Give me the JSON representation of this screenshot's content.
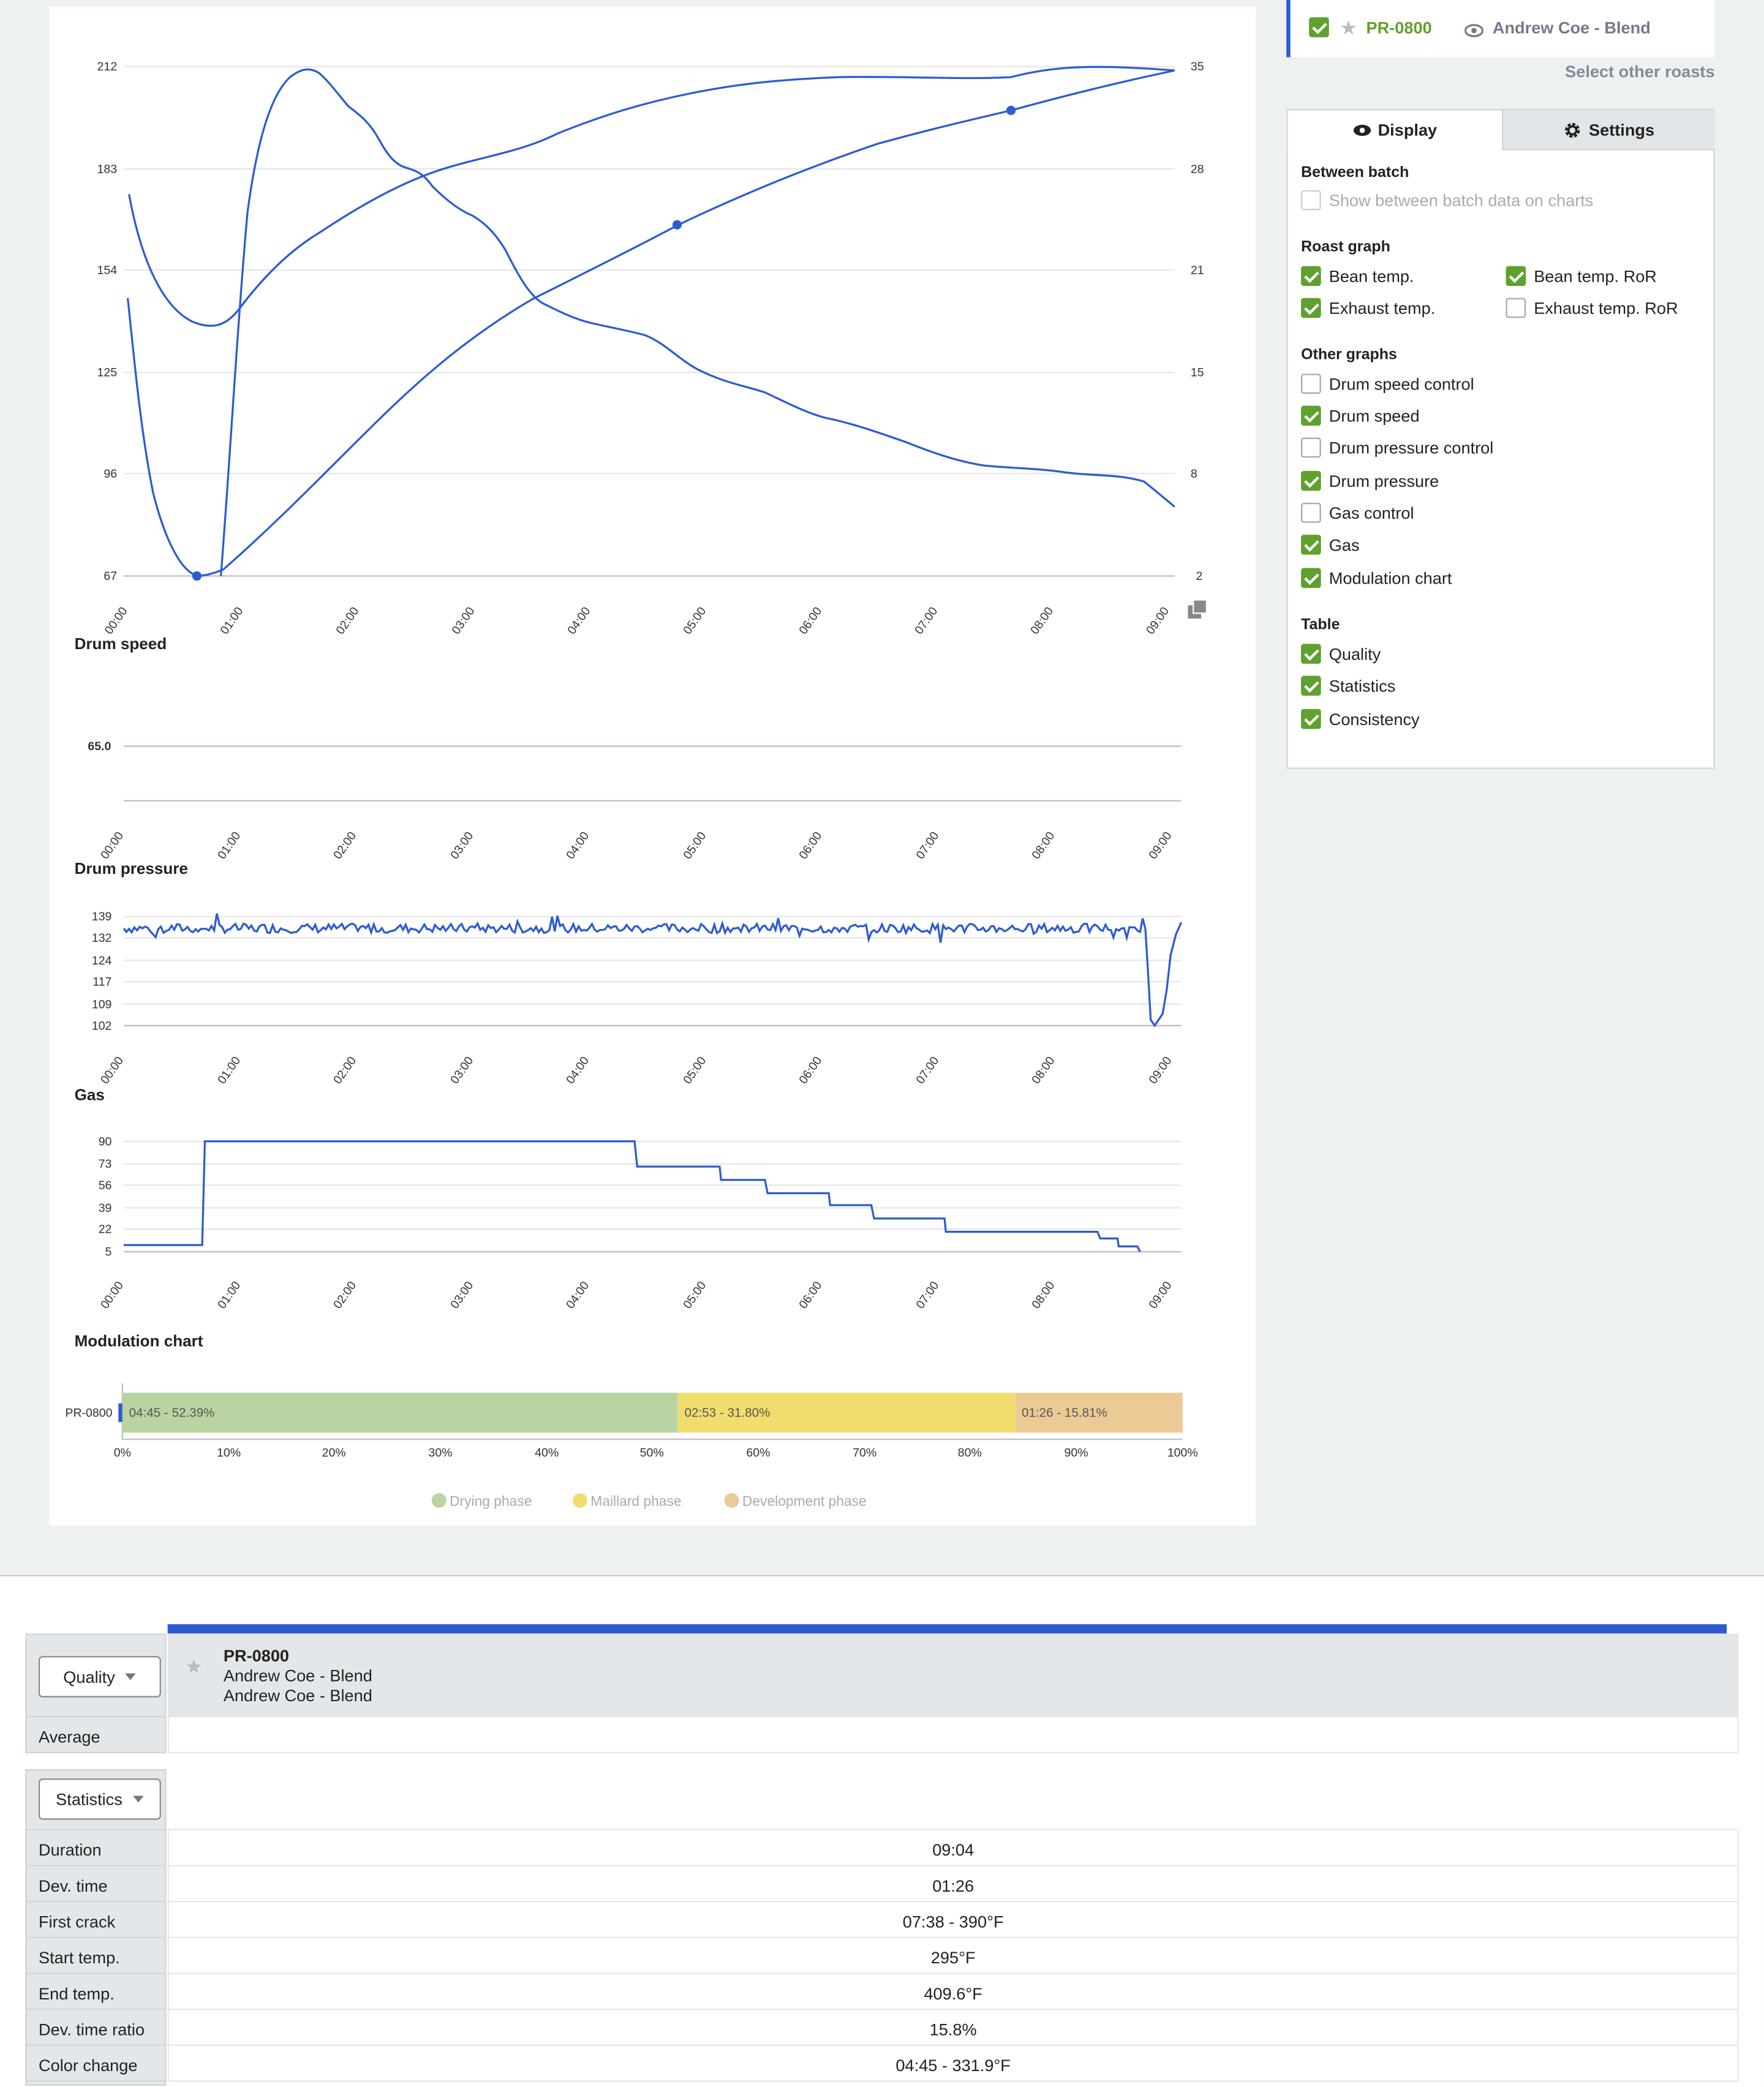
{
  "roast_graph": {
    "left_axis_ticks": [
      "212",
      "183",
      "154",
      "125",
      "96",
      "67"
    ],
    "right_axis_ticks": [
      "35",
      "28",
      "21",
      "15",
      "8",
      "2"
    ],
    "time_ticks": [
      "00:00",
      "01:00",
      "02:00",
      "03:00",
      "04:00",
      "05:00",
      "06:00",
      "07:00",
      "08:00",
      "09:00"
    ]
  },
  "drum_speed": {
    "title": "Drum speed",
    "value_label": "65.0"
  },
  "drum_pressure": {
    "title": "Drum pressure",
    "ticks": [
      "139",
      "132",
      "124",
      "117",
      "109",
      "102"
    ]
  },
  "gas": {
    "title": "Gas",
    "ticks": [
      "90",
      "73",
      "56",
      "39",
      "22",
      "5"
    ]
  },
  "modulation": {
    "title": "Modulation chart",
    "row_label": "PR-0800",
    "segments": [
      {
        "label": "04:45 - 52.39%",
        "percent": 52.39,
        "color": "#b9d3a2"
      },
      {
        "label": "02:53 - 31.80%",
        "percent": 31.8,
        "color": "#f1dd6d"
      },
      {
        "label": "01:26 - 15.81%",
        "percent": 15.81,
        "color": "#ebca96"
      }
    ],
    "axis_ticks": [
      "0%",
      "10%",
      "20%",
      "30%",
      "40%",
      "50%",
      "60%",
      "70%",
      "80%",
      "90%",
      "100%"
    ],
    "legend": [
      {
        "label": "Drying phase",
        "color": "#b9d3a2"
      },
      {
        "label": "Maillard phase",
        "color": "#f1dd6d"
      },
      {
        "label": "Development phase",
        "color": "#ebca96"
      }
    ]
  },
  "chart_data": [
    {
      "type": "line",
      "title": "",
      "x": [
        "00:00",
        "00:30",
        "00:39",
        "01:00",
        "01:30",
        "02:00",
        "02:30",
        "03:00",
        "03:30",
        "04:00",
        "04:30",
        "05:00",
        "05:30",
        "06:00",
        "06:30",
        "07:00",
        "07:30",
        "08:00",
        "08:30",
        "09:04"
      ],
      "series": [
        {
          "values": [
            176,
            144,
            138,
            141,
            160,
            172,
            181,
            186,
            189,
            196,
            202,
            206,
            208,
            208,
            208,
            207,
            210,
            211,
            211,
            210
          ]
        },
        {
          "values": [
            148,
            78,
            67,
            70,
            90,
            108,
            124,
            139,
            152,
            165,
            176,
            186,
            194,
            199,
            202,
            204,
            205,
            206,
            207,
            209
          ]
        },
        {
          "values": [
            null,
            null,
            2,
            20,
            34,
            29,
            25,
            23,
            20,
            18,
            16,
            14.5,
            13,
            12,
            11,
            10,
            9.5,
            8.5,
            8,
            6.5
          ]
        }
      ],
      "ylim_left": [
        67,
        212
      ],
      "ylim_right": [
        2,
        35
      ]
    },
    {
      "type": "line",
      "title": "Drum speed",
      "x": [
        "00:00",
        "09:00"
      ],
      "series": [
        {
          "values": [
            65.0,
            65.0
          ]
        }
      ]
    },
    {
      "type": "line",
      "title": "Drum pressure",
      "x": [
        "00:00",
        "01:00",
        "02:00",
        "03:00",
        "04:00",
        "05:00",
        "06:00",
        "07:00",
        "08:00",
        "08:50",
        "08:55",
        "09:00",
        "09:04"
      ],
      "series": [
        {
          "values": [
            135,
            135,
            135,
            135,
            135,
            135,
            135,
            135,
            135,
            135,
            102,
            118,
            137
          ]
        }
      ],
      "ylim": [
        102,
        139
      ]
    },
    {
      "type": "line",
      "title": "Gas",
      "x": [
        "00:00",
        "00:40",
        "00:41",
        "04:24",
        "04:25",
        "05:05",
        "05:30",
        "06:00",
        "06:20",
        "07:00",
        "08:20",
        "08:25",
        "08:40",
        "08:46"
      ],
      "series": [
        {
          "values": [
            5,
            5,
            90,
            90,
            73,
            63,
            56,
            39,
            33,
            22,
            22,
            17,
            10,
            5
          ]
        }
      ],
      "ylim": [
        5,
        90
      ]
    },
    {
      "type": "bar",
      "title": "Modulation chart",
      "categories": [
        "PR-0800"
      ],
      "series": [
        {
          "name": "Drying phase",
          "values": [
            52.39
          ]
        },
        {
          "name": "Maillard phase",
          "values": [
            31.8
          ]
        },
        {
          "name": "Development phase",
          "values": [
            15.81
          ]
        }
      ]
    }
  ],
  "roast_header": {
    "id": "PR-0800",
    "name": "Andrew Coe - Blend",
    "select_other": "Select other roasts"
  },
  "settings": {
    "tabs": {
      "display": "Display",
      "settings": "Settings"
    },
    "between_batch": {
      "title": "Between batch",
      "show": "Show between batch data on charts"
    },
    "roast_graph": {
      "title": "Roast graph",
      "bean_temp": "Bean temp.",
      "bean_ror": "Bean temp. RoR",
      "exhaust_temp": "Exhaust temp.",
      "exhaust_ror": "Exhaust temp. RoR"
    },
    "other_graphs": {
      "title": "Other graphs",
      "items": [
        "Drum speed control",
        "Drum speed",
        "Drum pressure control",
        "Drum pressure",
        "Gas control",
        "Gas",
        "Modulation chart"
      ]
    },
    "table": {
      "title": "Table",
      "items": [
        "Quality",
        "Statistics",
        "Consistency"
      ]
    }
  },
  "quality_table": {
    "dropdown": "Quality",
    "roast_id": "PR-0800",
    "line1": "Andrew Coe - Blend",
    "line2": "Andrew Coe - Blend",
    "average_label": "Average"
  },
  "statistics_table": {
    "dropdown": "Statistics",
    "rows": [
      {
        "label": "Duration",
        "value": "09:04"
      },
      {
        "label": "Dev. time",
        "value": "01:26"
      },
      {
        "label": "First crack",
        "value": "07:38 - 390°F"
      },
      {
        "label": "Start temp.",
        "value": "295°F"
      },
      {
        "label": "End temp.",
        "value": "409.6°F"
      },
      {
        "label": "Dev. time ratio",
        "value": "15.8%"
      },
      {
        "label": "Color change",
        "value": "04:45 - 331.9°F"
      }
    ]
  }
}
